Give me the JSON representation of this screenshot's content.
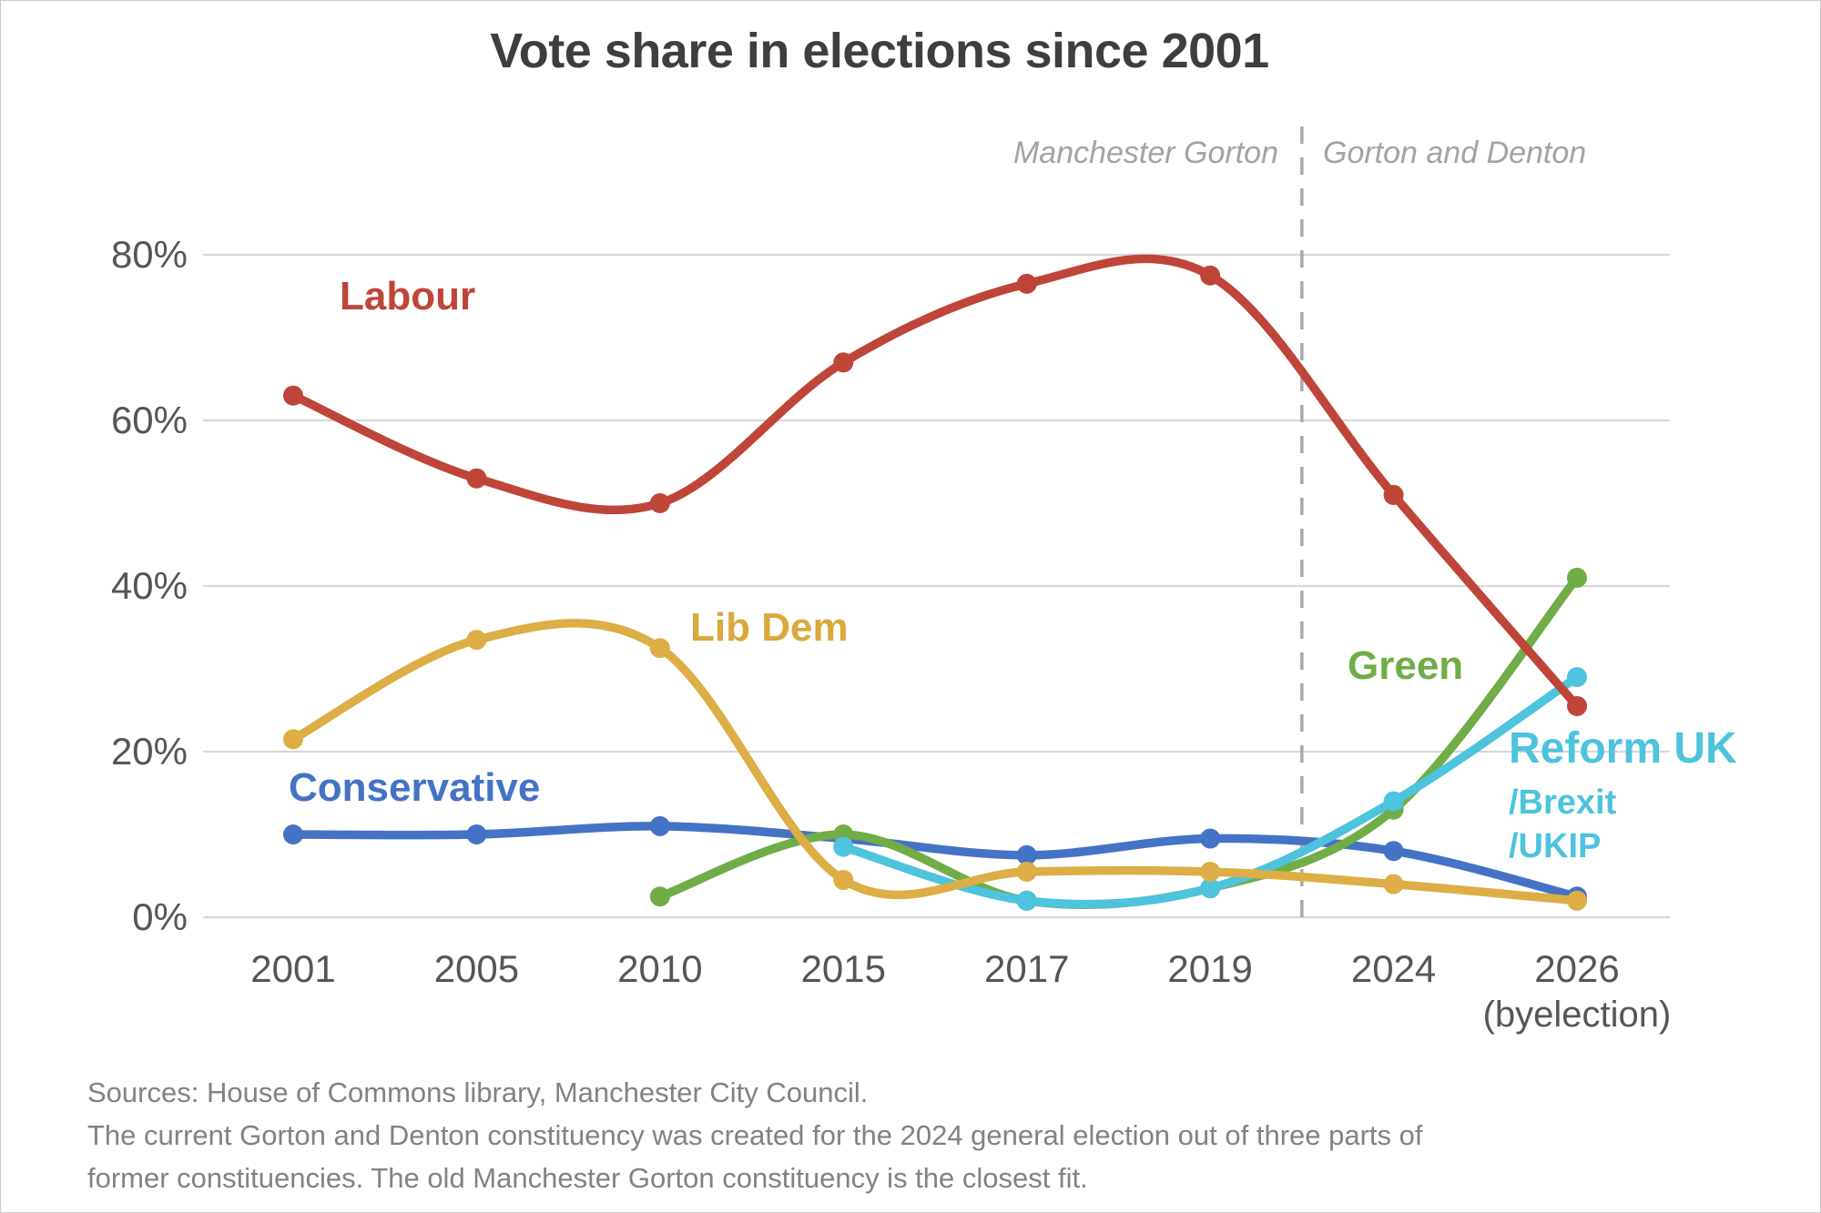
{
  "title": "Vote share in elections since 2001",
  "era": {
    "left_label": "Manchester Gorton",
    "right_label": "Gorton and Denton"
  },
  "labels": {
    "labour": "Labour",
    "libdem": "Lib Dem",
    "conservative": "Conservative",
    "green": "Green",
    "reform": "Reform UK",
    "reform_sub1": "/Brexit",
    "reform_sub2": "/UKIP"
  },
  "x_axis": {
    "categories": [
      "2001",
      "2005",
      "2010",
      "2015",
      "2017",
      "2019",
      "2024",
      "2026"
    ],
    "byelection_note": "(byelection)"
  },
  "y_axis": {
    "tick_labels": [
      "0%",
      "20%",
      "40%",
      "60%",
      "80%"
    ],
    "tick_values": [
      0,
      20,
      40,
      60,
      80
    ]
  },
  "chart_data": {
    "type": "line",
    "title": "Vote share in elections since 2001",
    "x_categories": [
      "2001",
      "2005",
      "2010",
      "2015",
      "2017",
      "2019",
      "2024",
      "2026 (byelection)"
    ],
    "ylim": [
      0,
      85
    ],
    "yticks": [
      0,
      20,
      40,
      60,
      80
    ],
    "grid": true,
    "legend_position": "inline-labels",
    "separator_index": 5.5,
    "annotations": {
      "separator_between": [
        "2019",
        "2024"
      ],
      "left_region_label": "Manchester Gorton",
      "right_region_label": "Gorton and Denton"
    },
    "series": [
      {
        "name": "Conservative",
        "color": "#4473c5",
        "values": [
          10,
          10,
          11,
          9.5,
          7.5,
          9.5,
          8,
          2.5
        ]
      },
      {
        "name": "Green",
        "color": "#70ad47",
        "values": [
          null,
          null,
          2.5,
          10,
          2,
          3.5,
          13,
          41
        ]
      },
      {
        "name": "Reform UK /Brexit /UKIP",
        "color": "#4dc3de",
        "values": [
          null,
          null,
          null,
          8.5,
          2,
          3.5,
          14,
          29
        ]
      },
      {
        "name": "Lib Dem",
        "color": "#ddae45",
        "values": [
          21.5,
          33.5,
          32.5,
          4.5,
          5.5,
          5.5,
          4,
          2
        ]
      },
      {
        "name": "Labour",
        "color": "#bf4538",
        "values": [
          63,
          53,
          50,
          67,
          76.5,
          77.5,
          51,
          25.5
        ]
      }
    ]
  },
  "sources": [
    "Sources: House of Commons library, Manchester City Council.",
    "The current Gorton and Denton constituency was created for the 2024 general election out of three parts of",
    "former constituencies. The old Manchester Gorton constituency is the closest fit."
  ]
}
